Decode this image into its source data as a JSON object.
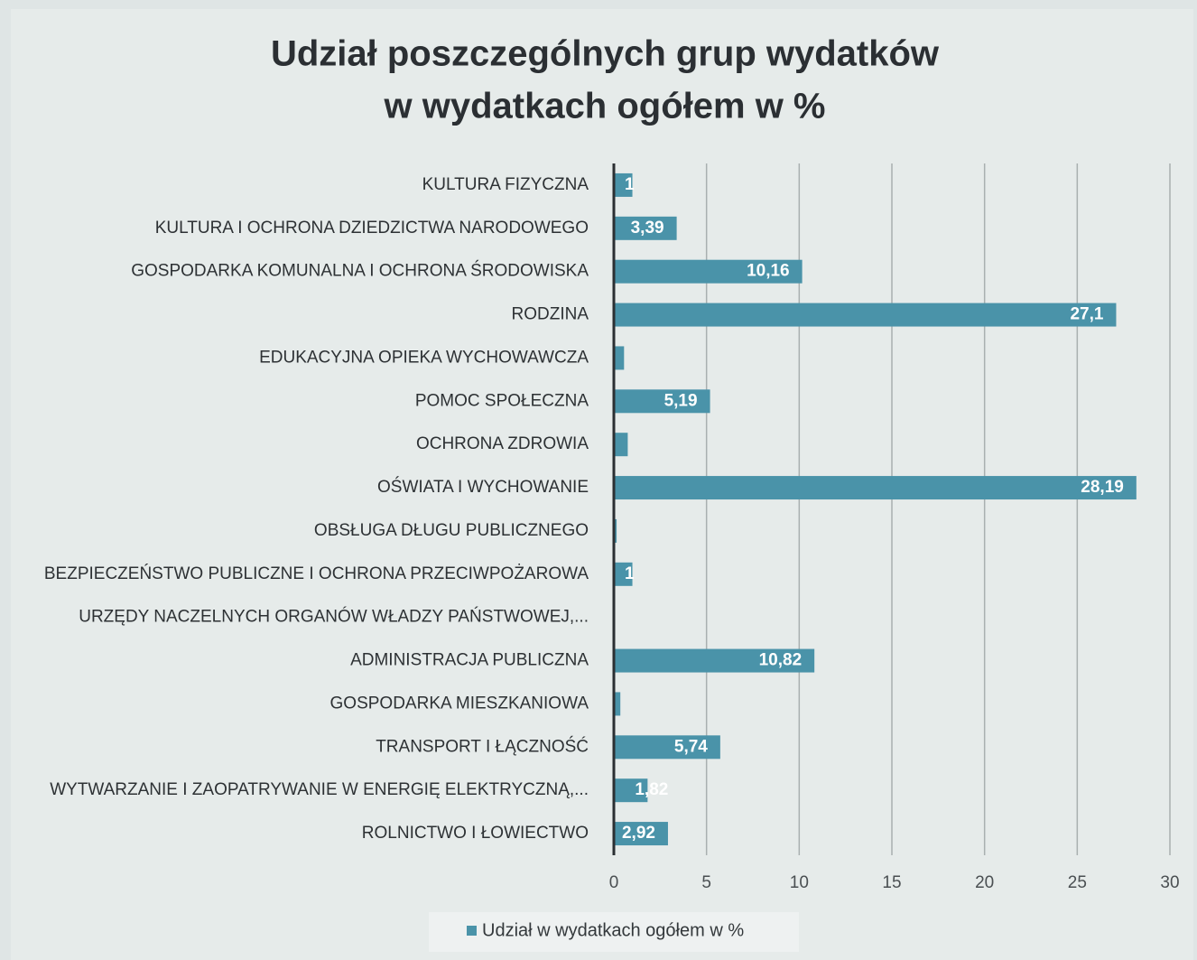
{
  "chart_data": {
    "type": "bar",
    "orientation": "horizontal",
    "title": [
      "Udział poszczególnych grup wydatków",
      "w wydatkach ogółem w %"
    ],
    "categories": [
      "KULTURA FIZYCZNA",
      "KULTURA I OCHRONA DZIEDZICTWA NARODOWEGO",
      "GOSPODARKA KOMUNALNA I OCHRONA ŚRODOWISKA",
      "RODZINA",
      "EDUKACYJNA OPIEKA WYCHOWAWCZA",
      "POMOC SPOŁECZNA",
      "OCHRONA ZDROWIA",
      "OŚWIATA I WYCHOWANIE",
      "OBSŁUGA DŁUGU PUBLICZNEGO",
      "BEZPIECZEŃSTWO PUBLICZNE I OCHRONA PRZECIWPOŻAROWA",
      "URZĘDY NACZELNYCH ORGANÓW WŁADZY PAŃSTWOWEJ,...",
      "ADMINISTRACJA PUBLICZNA",
      "GOSPODARKA MIESZKANIOWA",
      "TRANSPORT I ŁĄCZNOŚĆ",
      "WYTWARZANIE I ZAOPATRYWANIE W ENERGIĘ ELEKTRYCZNĄ,...",
      "ROLNICTWO I ŁOWIECTWO"
    ],
    "series": [
      {
        "name": "Udział w wydatkach ogółem w %",
        "color": "#4a93a9",
        "values": [
          1,
          3.39,
          10.16,
          27.1,
          0.55,
          5.19,
          0.75,
          28.19,
          0.15,
          1,
          0.05,
          10.82,
          0.35,
          5.74,
          1.82,
          2.92
        ],
        "value_labels": [
          "1",
          "3,39",
          "10,16",
          "27,1",
          null,
          "5,19",
          null,
          "28,19",
          null,
          "1",
          null,
          "10,82",
          null,
          "5,74",
          "1,82",
          "2,92"
        ]
      }
    ],
    "xlim": [
      0,
      30
    ],
    "xticks": [
      0,
      5,
      10,
      15,
      20,
      25,
      30
    ],
    "grid": true,
    "legend": "bottom"
  }
}
